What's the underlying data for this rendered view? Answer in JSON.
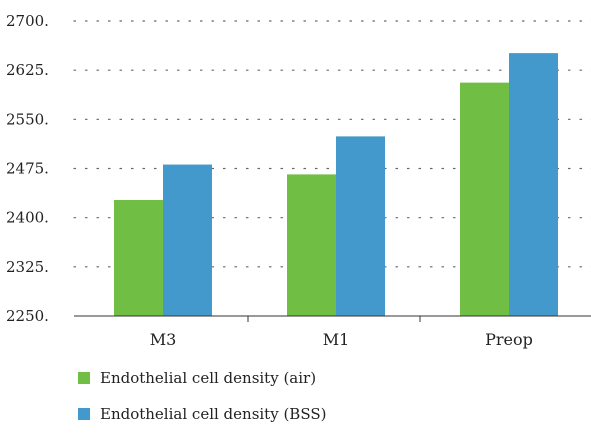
{
  "chart_data": {
    "type": "bar",
    "categories": [
      "M3",
      "M1",
      "Preop"
    ],
    "series": [
      {
        "name": "Endothelial cell density (air)",
        "color": "#71be45",
        "values": [
          2427,
          2466,
          2606
        ]
      },
      {
        "name": "Endothelial cell density (BSS)",
        "color": "#4399cb",
        "values": [
          2481,
          2524,
          2651
        ]
      }
    ],
    "ylim": [
      2250,
      2700
    ],
    "yticks": [
      2250,
      2325,
      2400,
      2475,
      2550,
      2625,
      2700
    ],
    "ytick_labels": [
      "2250.",
      "2325.",
      "2400.",
      "2475.",
      "2550.",
      "2625.",
      "2700."
    ],
    "grid": "horizontal dotted",
    "legend_position": "bottom"
  }
}
